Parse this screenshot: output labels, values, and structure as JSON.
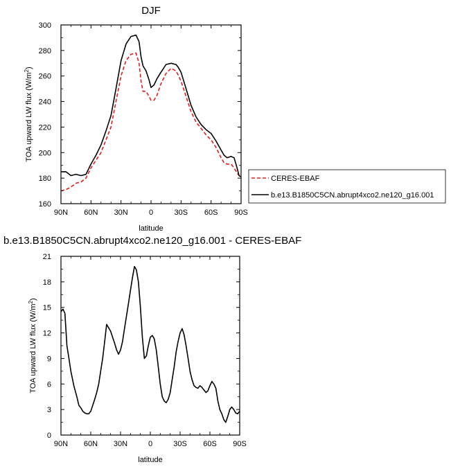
{
  "chart_data": [
    {
      "type": "line",
      "title": "DJF",
      "xlabel": "latitude",
      "ylabel_main": "TOA upward LW flux (W/m",
      "ylabel_sup": "2",
      "ylabel_close": ")",
      "xlim": [
        90,
        -90
      ],
      "ylim": [
        160,
        300
      ],
      "xticks": [
        90,
        60,
        30,
        0,
        -30,
        -60,
        -90
      ],
      "xtick_labels": [
        "90N",
        "60N",
        "30N",
        "0",
        "30S",
        "60S",
        "90S"
      ],
      "yticks": [
        160,
        180,
        200,
        220,
        240,
        260,
        280,
        300
      ],
      "ytick_labels": [
        "160",
        "180",
        "200",
        "220",
        "240",
        "260",
        "280",
        "300"
      ],
      "legend_position": "right",
      "series": [
        {
          "name": "CERES-EBAF",
          "color": "#e41a1c",
          "dash": "dashed",
          "x": [
            90,
            85,
            80,
            75,
            70,
            65,
            60,
            55,
            50,
            45,
            40,
            35,
            30,
            25,
            20,
            15,
            12,
            10,
            8,
            5,
            2,
            0,
            -3,
            -6,
            -10,
            -15,
            -20,
            -25,
            -27,
            -30,
            -35,
            -40,
            -45,
            -50,
            -55,
            -60,
            -65,
            -70,
            -73,
            -76,
            -80,
            -83,
            -86,
            -88,
            -90
          ],
          "y": [
            170,
            171,
            173,
            176,
            177,
            180,
            188,
            194,
            200,
            210,
            220,
            240,
            260,
            272,
            277,
            278,
            270,
            256,
            248,
            248,
            244,
            241,
            241,
            245,
            254,
            262,
            266,
            264,
            261,
            256,
            244,
            232,
            224,
            219,
            214,
            210,
            204,
            196,
            192,
            191,
            191,
            188,
            184,
            182,
            180
          ]
        },
        {
          "name": "b.e13.B1850C5CN.abrupt4xco2.ne120_g16.001",
          "color": "#000000",
          "dash": "solid",
          "x": [
            90,
            85,
            80,
            75,
            70,
            65,
            60,
            55,
            50,
            45,
            40,
            35,
            30,
            25,
            20,
            15,
            12,
            10,
            8,
            5,
            2,
            0,
            -3,
            -6,
            -10,
            -15,
            -20,
            -25,
            -27,
            -30,
            -35,
            -40,
            -45,
            -50,
            -55,
            -60,
            -65,
            -70,
            -73,
            -76,
            -80,
            -83,
            -86,
            -88,
            -90
          ],
          "y": [
            185,
            185,
            182,
            183,
            182,
            183,
            191,
            198,
            206,
            217,
            229,
            250,
            272,
            285,
            291,
            292,
            287,
            275,
            268,
            264,
            257,
            251,
            253,
            258,
            263,
            269,
            270,
            269,
            267,
            263,
            250,
            237,
            228,
            222,
            218,
            215,
            209,
            202,
            198,
            196,
            197,
            196,
            188,
            182,
            181
          ]
        }
      ]
    },
    {
      "type": "line",
      "title": "b.e13.B1850C5CN.abrupt4xco2.ne120_g16.001 - CERES-EBAF",
      "xlabel": "latitude",
      "ylabel_main": "TOA upward LW flux (W/m",
      "ylabel_sup": "2",
      "ylabel_close": ")",
      "xlim": [
        90,
        -90
      ],
      "ylim": [
        0,
        21
      ],
      "xticks": [
        90,
        60,
        30,
        0,
        -30,
        -60,
        -90
      ],
      "xtick_labels": [
        "90N",
        "60N",
        "30N",
        "0",
        "30S",
        "60S",
        "90S"
      ],
      "yticks": [
        0,
        3,
        6,
        9,
        12,
        15,
        18,
        21
      ],
      "ytick_labels": [
        "0",
        "3",
        "6",
        "9",
        "12",
        "15",
        "18",
        "21"
      ],
      "series": [
        {
          "color": "#000000",
          "dash": "solid",
          "x": [
            90,
            88,
            86,
            84,
            82,
            80,
            77,
            74,
            72,
            70,
            68,
            66,
            64,
            62,
            60,
            58,
            56,
            54,
            52,
            50,
            48,
            46,
            44,
            42,
            40,
            38,
            36,
            34,
            32,
            30,
            28,
            26,
            24,
            22,
            20,
            18,
            16,
            14,
            12,
            10,
            8,
            6,
            4,
            2,
            0,
            -2,
            -4,
            -6,
            -8,
            -10,
            -12,
            -14,
            -16,
            -18,
            -20,
            -22,
            -24,
            -26,
            -28,
            -30,
            -32,
            -34,
            -36,
            -38,
            -40,
            -42,
            -44,
            -46,
            -48,
            -50,
            -52,
            -54,
            -56,
            -58,
            -60,
            -62,
            -64,
            -66,
            -68,
            -70,
            -72,
            -74,
            -76,
            -78,
            -80,
            -82,
            -84,
            -86,
            -88,
            -90
          ],
          "y": [
            14.5,
            14.8,
            14.3,
            10.5,
            9.0,
            7.5,
            5.8,
            4.5,
            3.5,
            3.2,
            2.8,
            2.6,
            2.5,
            2.5,
            2.8,
            3.5,
            4.2,
            5.0,
            6.0,
            7.5,
            9.0,
            11.0,
            13.0,
            12.6,
            12.2,
            11.5,
            10.8,
            10.0,
            9.5,
            10.0,
            11.0,
            12.5,
            14.0,
            15.5,
            17.0,
            18.5,
            19.8,
            19.4,
            18.0,
            15.0,
            11.5,
            9.0,
            9.3,
            10.5,
            11.5,
            11.7,
            11.3,
            10.0,
            8.0,
            6.0,
            4.5,
            4.0,
            3.8,
            4.2,
            5.0,
            6.5,
            8.0,
            9.8,
            11.0,
            12.0,
            12.5,
            11.8,
            10.5,
            9.0,
            7.5,
            6.5,
            5.8,
            5.6,
            5.5,
            5.8,
            5.6,
            5.3,
            5.0,
            5.2,
            5.8,
            6.3,
            6.0,
            5.5,
            4.0,
            3.0,
            2.5,
            1.8,
            1.5,
            2.2,
            3.0,
            3.3,
            3.0,
            2.6,
            2.5,
            2.8
          ]
        }
      ]
    }
  ]
}
